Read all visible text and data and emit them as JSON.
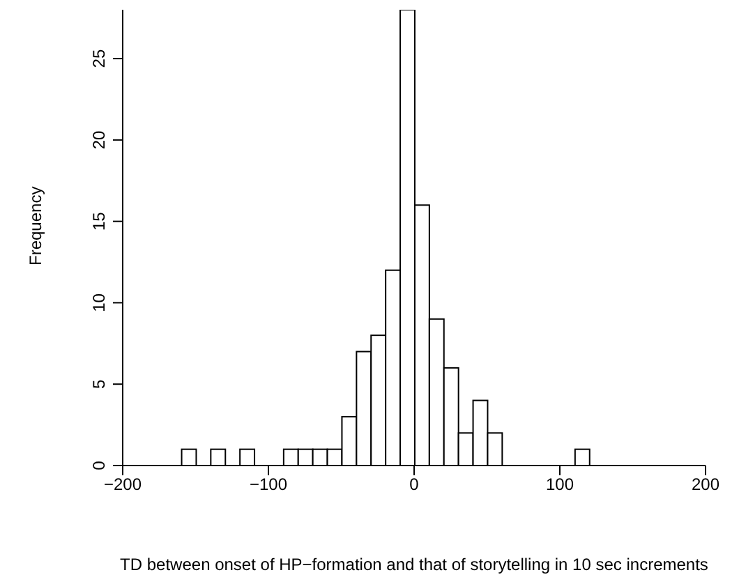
{
  "chart_data": {
    "type": "histogram",
    "xlabel": "TD between onset of HP−formation and that of storytelling in 10 sec increments",
    "ylabel": "Frequency",
    "bins": [
      -200,
      -190,
      -180,
      -170,
      -160,
      -150,
      -140,
      -130,
      -120,
      -110,
      -100,
      -90,
      -80,
      -70,
      -60,
      -50,
      -40,
      -30,
      -20,
      -10,
      0,
      10,
      20,
      30,
      40,
      50,
      60,
      70,
      80,
      90,
      100,
      110,
      120,
      130,
      140,
      150,
      160,
      170,
      180,
      190,
      200
    ],
    "values": [
      0,
      0,
      0,
      0,
      1,
      0,
      1,
      0,
      1,
      0,
      0,
      1,
      1,
      1,
      1,
      3,
      7,
      8,
      12,
      28,
      16,
      9,
      6,
      2,
      4,
      2,
      0,
      0,
      0,
      0,
      0,
      1,
      0,
      0,
      0,
      0,
      0,
      0,
      0,
      0
    ],
    "color": "#ffffff",
    "xlim": [
      -200,
      200
    ],
    "xticks": [
      -200,
      -100,
      0,
      100,
      200
    ],
    "ylim": [
      0,
      28
    ],
    "yticks": [
      0,
      5,
      10,
      15,
      20,
      25
    ],
    "grid": false
  }
}
